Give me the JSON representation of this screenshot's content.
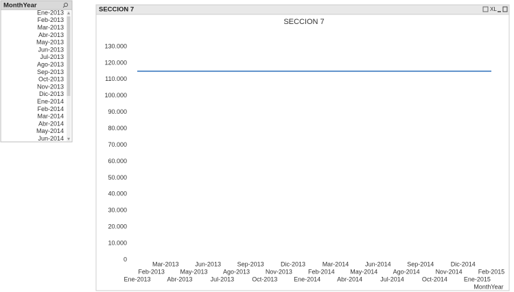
{
  "listbox": {
    "title": "MonthYear",
    "items": [
      "Ene-2013",
      "Feb-2013",
      "Mar-2013",
      "Abr-2013",
      "May-2013",
      "Jun-2013",
      "Jul-2013",
      "Ago-2013",
      "Sep-2013",
      "Oct-2013",
      "Nov-2013",
      "Dic-2013",
      "Ene-2014",
      "Feb-2014",
      "Mar-2014",
      "Abr-2014",
      "May-2014",
      "Jun-2014"
    ]
  },
  "window": {
    "caption": "SECCION 7",
    "export_label": "XL"
  },
  "chart_data": {
    "type": "line",
    "title": "SECCION 7",
    "x_label": "MonthYear",
    "categories": [
      "Ene-2013",
      "Feb-2013",
      "Mar-2013",
      "Abr-2013",
      "May-2013",
      "Jun-2013",
      "Jul-2013",
      "Ago-2013",
      "Sep-2013",
      "Oct-2013",
      "Nov-2013",
      "Dic-2013",
      "Ene-2014",
      "Feb-2014",
      "Mar-2014",
      "Abr-2014",
      "May-2014",
      "Jun-2014",
      "Jul-2014",
      "Ago-2014",
      "Sep-2014",
      "Oct-2014",
      "Nov-2014",
      "Dic-2014",
      "Ene-2015",
      "Feb-2015"
    ],
    "values": [
      115000,
      115000,
      115000,
      115000,
      115000,
      115000,
      115000,
      115000,
      115000,
      115000,
      115000,
      115000,
      115000,
      115000,
      115000,
      115000,
      115000,
      115000,
      115000,
      115000,
      115000,
      115000,
      115000,
      115000,
      115000,
      115000
    ],
    "color": "#5b8fc9",
    "ylim": [
      0,
      130000
    ],
    "yticks": [
      0,
      {
        "value": 10000,
        "label": "10.000"
      },
      {
        "value": 20000,
        "label": "20.000"
      },
      {
        "value": 30000,
        "label": "30.000"
      },
      {
        "value": 40000,
        "label": "40.000"
      },
      {
        "value": 50000,
        "label": "50.000"
      },
      {
        "value": 60000,
        "label": "60.000"
      },
      {
        "value": 70000,
        "label": "70.000"
      },
      {
        "value": 80000,
        "label": "80.000"
      },
      {
        "value": 90000,
        "label": "90.000"
      },
      {
        "value": 100000,
        "label": "100.000"
      },
      {
        "value": 110000,
        "label": "110.000"
      },
      {
        "value": 120000,
        "label": "120.000"
      },
      {
        "value": 130000,
        "label": "130.000"
      }
    ],
    "grid": false
  }
}
